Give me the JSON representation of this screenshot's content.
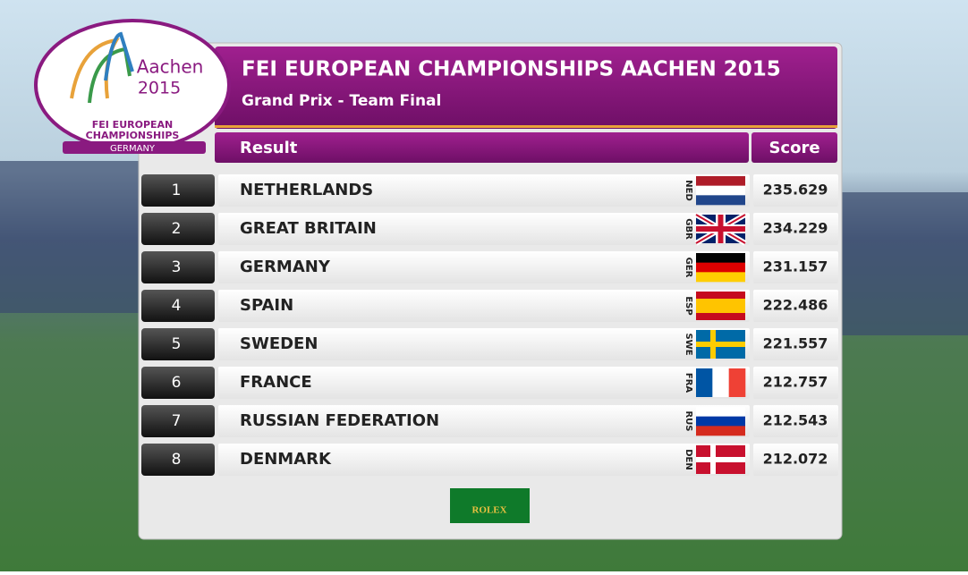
{
  "logo": {
    "city": "Aachen",
    "year": "2015",
    "line1": "FEI EUROPEAN",
    "line2": "CHAMPIONSHIPS",
    "country": "GERMANY"
  },
  "header": {
    "title": "FEI EUROPEAN CHAMPIONSHIPS AACHEN 2015",
    "subtitle": "Grand Prix - Team Final"
  },
  "table": {
    "columns": [
      "Result",
      "Score"
    ],
    "rows": [
      {
        "rank": 1,
        "name": "NETHERLANDS",
        "code": "NED",
        "score": "235.629"
      },
      {
        "rank": 2,
        "name": "GREAT BRITAIN",
        "code": "GBR",
        "score": "234.229"
      },
      {
        "rank": 3,
        "name": "GERMANY",
        "code": "GER",
        "score": "231.157"
      },
      {
        "rank": 4,
        "name": "SPAIN",
        "code": "ESP",
        "score": "222.486"
      },
      {
        "rank": 5,
        "name": "SWEDEN",
        "code": "SWE",
        "score": "221.557"
      },
      {
        "rank": 6,
        "name": "FRANCE",
        "code": "FRA",
        "score": "212.757"
      },
      {
        "rank": 7,
        "name": "RUSSIAN FEDERATION",
        "code": "RUS",
        "score": "212.543"
      },
      {
        "rank": 8,
        "name": "DENMARK",
        "code": "DEN",
        "score": "212.072"
      }
    ]
  },
  "sponsor": "ROLEX"
}
